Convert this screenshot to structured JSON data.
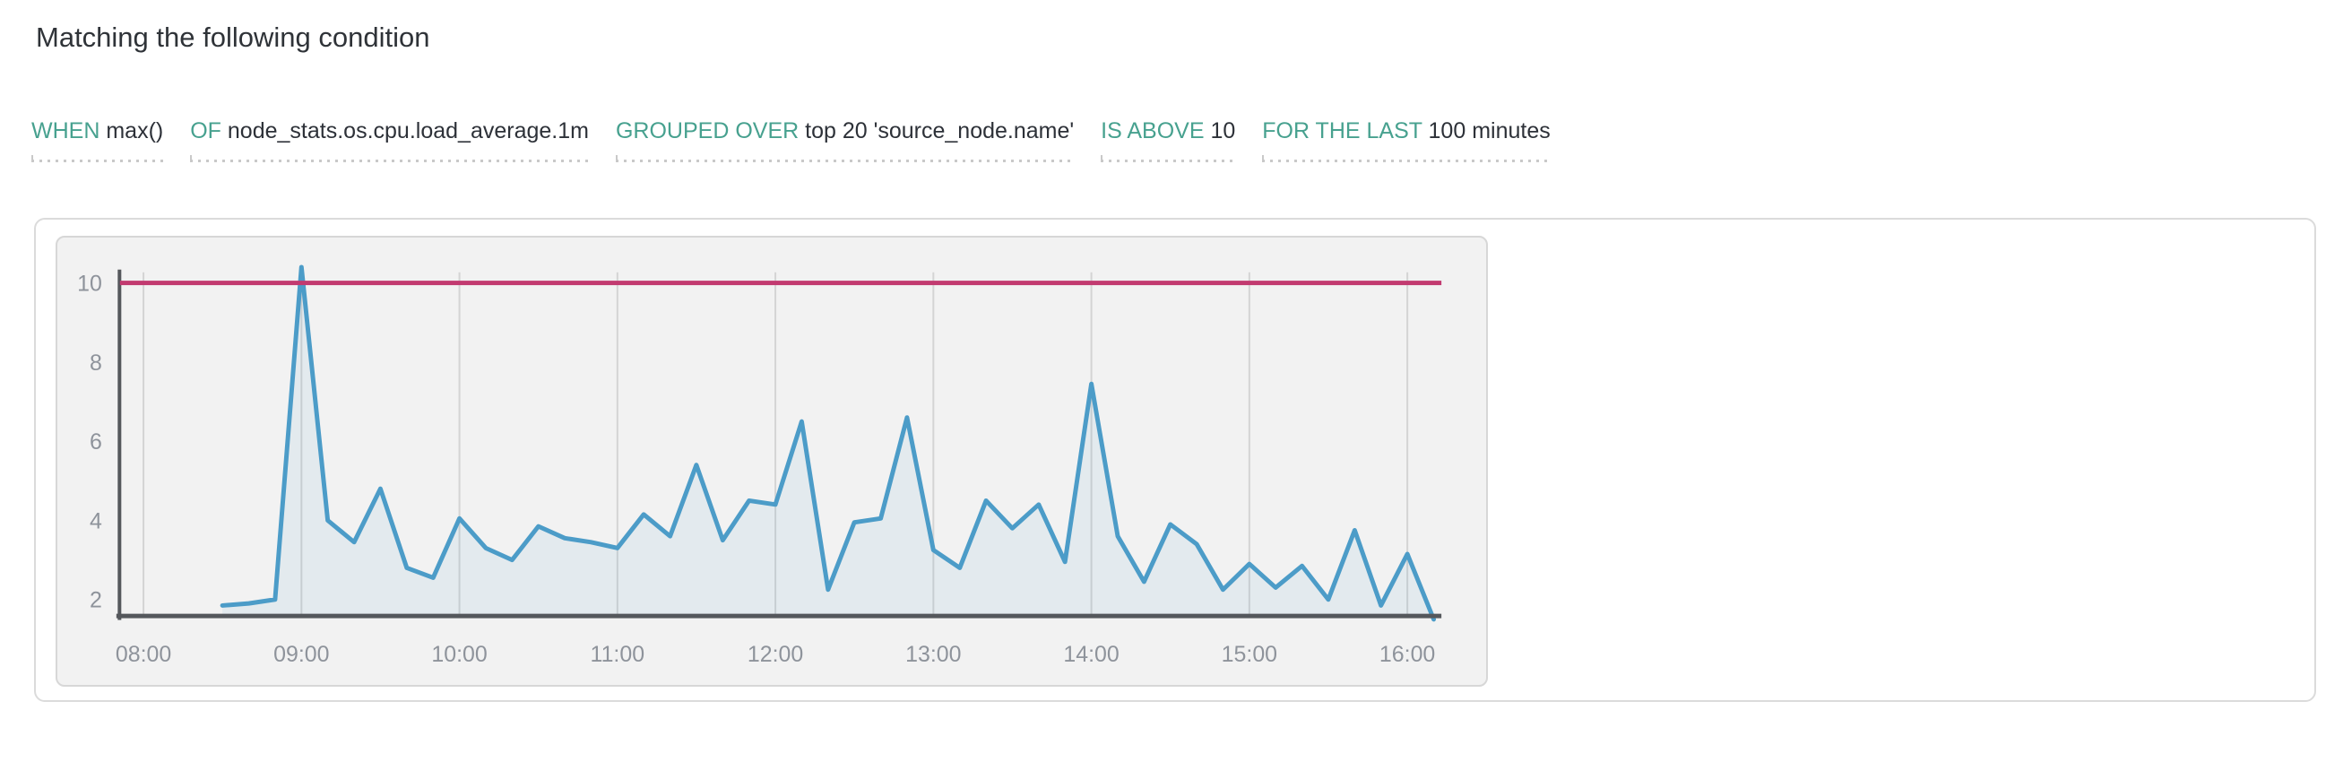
{
  "header": {
    "title": "Matching the following condition"
  },
  "conditions": [
    {
      "keyword": "WHEN",
      "value": "max()"
    },
    {
      "keyword": "OF",
      "value": "node_stats.os.cpu.load_average.1m"
    },
    {
      "keyword": "GROUPED OVER",
      "value": "top 20 'source_node.name'"
    },
    {
      "keyword": "IS ABOVE",
      "value": "10"
    },
    {
      "keyword": "FOR THE LAST",
      "value": "100 minutes"
    }
  ],
  "colors": {
    "keyword_teal": "#47a18f",
    "value_text": "#2d3138",
    "threshold_pink": "#c23a70",
    "series_blue": "#4c9cc8",
    "series_fill": "rgba(77,157,201,0.09)",
    "axis_dark": "#55585c",
    "gridline": "#d4d4d4",
    "tick_text": "#8e939b",
    "panel_bg": "#f2f2f2"
  },
  "chart_data": {
    "type": "line",
    "title": "",
    "xlabel": "",
    "ylabel": "",
    "grid": true,
    "legend": false,
    "threshold": 10,
    "ylim": [
      1.6,
      11.2
    ],
    "y_ticks": [
      10,
      8,
      6,
      4,
      2
    ],
    "x_ticks": [
      "08:00",
      "09:00",
      "10:00",
      "11:00",
      "12:00",
      "13:00",
      "14:00",
      "15:00",
      "16:00"
    ],
    "x": [
      "08:30",
      "08:40",
      "08:50",
      "09:00",
      "09:10",
      "09:20",
      "09:30",
      "09:40",
      "09:50",
      "10:00",
      "10:10",
      "10:20",
      "10:30",
      "10:40",
      "10:50",
      "11:00",
      "11:10",
      "11:20",
      "11:30",
      "11:40",
      "11:50",
      "12:00",
      "12:10",
      "12:20",
      "12:30",
      "12:40",
      "12:50",
      "13:00",
      "13:10",
      "13:20",
      "13:30",
      "13:40",
      "13:50",
      "14:00",
      "14:10",
      "14:20",
      "14:30",
      "14:40",
      "14:50",
      "15:00",
      "15:10",
      "15:20",
      "15:30",
      "15:40",
      "15:50",
      "16:00",
      "16:10"
    ],
    "values": [
      1.85,
      1.9,
      2.0,
      10.4,
      4.0,
      3.45,
      4.8,
      2.8,
      2.55,
      4.05,
      3.3,
      3.0,
      3.85,
      3.55,
      3.45,
      3.3,
      4.15,
      3.6,
      5.4,
      3.5,
      4.5,
      4.4,
      6.5,
      2.25,
      3.95,
      4.05,
      6.6,
      3.25,
      2.8,
      4.5,
      3.8,
      4.4,
      2.95,
      7.45,
      3.6,
      2.45,
      3.9,
      3.4,
      2.25,
      2.9,
      2.3,
      2.85,
      2.0,
      3.75,
      1.85,
      3.15,
      1.5
    ]
  }
}
